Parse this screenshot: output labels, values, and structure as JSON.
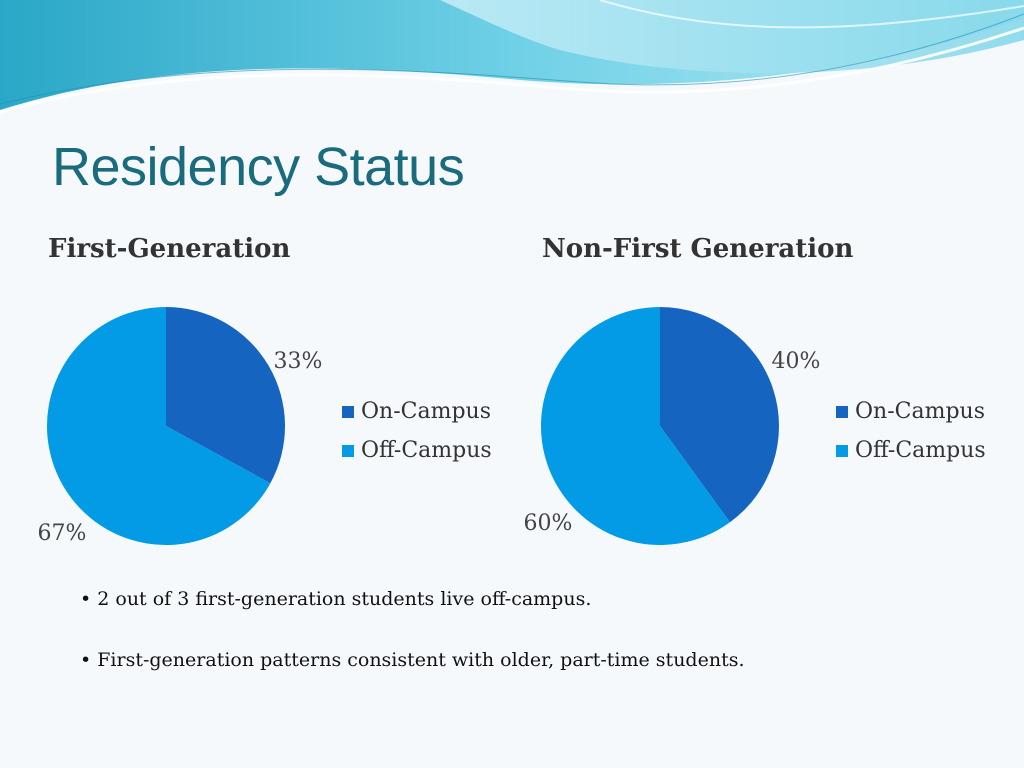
{
  "slide": {
    "title": "Residency Status",
    "bullets": [
      "• 2 out of 3 first-generation students live off-campus.",
      "• First-generation patterns consistent with older, part-time students."
    ]
  },
  "colors": {
    "on_campus": "#1565c0",
    "off_campus": "#039be5",
    "title": "#1a6b7d"
  },
  "chart_data": [
    {
      "type": "pie",
      "title": "First-Generation",
      "categories": [
        "On-Campus",
        "Off-Campus"
      ],
      "values": [
        33,
        67
      ],
      "data_labels": [
        "33%",
        "67%"
      ],
      "legend": "right"
    },
    {
      "type": "pie",
      "title": "Non-First Generation",
      "categories": [
        "On-Campus",
        "Off-Campus"
      ],
      "values": [
        40,
        60
      ],
      "data_labels": [
        "40%",
        "60%"
      ],
      "legend": "right"
    }
  ]
}
